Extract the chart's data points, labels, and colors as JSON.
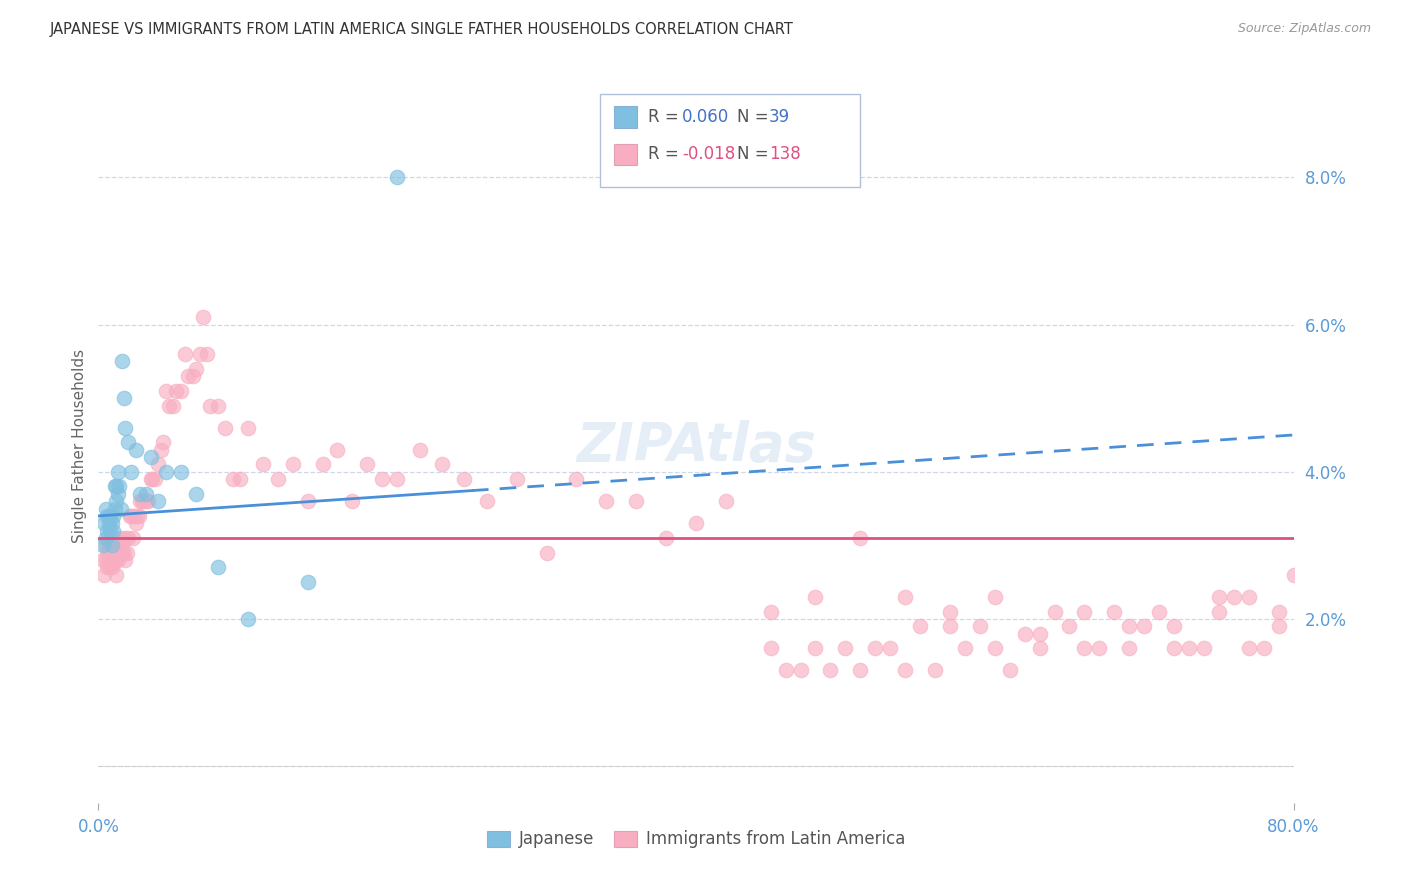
{
  "title": "JAPANESE VS IMMIGRANTS FROM LATIN AMERICA SINGLE FATHER HOUSEHOLDS CORRELATION CHART",
  "source": "Source: ZipAtlas.com",
  "ylabel": "Single Father Households",
  "xlim": [
    0.0,
    0.8
  ],
  "ylim": [
    -0.005,
    0.092
  ],
  "xticks": [
    0.0,
    0.8
  ],
  "xticklabels": [
    "0.0%",
    "80.0%"
  ],
  "right_ytick_positions": [
    0.02,
    0.04,
    0.06,
    0.08
  ],
  "right_ytick_labels": [
    "2.0%",
    "4.0%",
    "6.0%",
    "8.0%"
  ],
  "color_japanese": "#7fbfdf",
  "color_latin": "#f8aec0",
  "color_line_japanese": "#4a90d9",
  "color_line_latin": "#e05080",
  "background_color": "#ffffff",
  "grid_color": "#d0d8e8",
  "watermark": "ZIPAtlas",
  "japanese_x": [
    0.003,
    0.004,
    0.005,
    0.005,
    0.006,
    0.006,
    0.007,
    0.007,
    0.008,
    0.008,
    0.009,
    0.009,
    0.01,
    0.01,
    0.011,
    0.011,
    0.012,
    0.012,
    0.013,
    0.013,
    0.014,
    0.015,
    0.016,
    0.017,
    0.018,
    0.02,
    0.022,
    0.025,
    0.028,
    0.032,
    0.035,
    0.04,
    0.045,
    0.055,
    0.065,
    0.08,
    0.1,
    0.14,
    0.2
  ],
  "japanese_y": [
    0.03,
    0.033,
    0.031,
    0.035,
    0.032,
    0.034,
    0.033,
    0.034,
    0.032,
    0.034,
    0.033,
    0.03,
    0.032,
    0.034,
    0.035,
    0.038,
    0.036,
    0.038,
    0.04,
    0.037,
    0.038,
    0.035,
    0.055,
    0.05,
    0.046,
    0.044,
    0.04,
    0.043,
    0.037,
    0.037,
    0.042,
    0.036,
    0.04,
    0.04,
    0.037,
    0.027,
    0.02,
    0.025,
    0.08
  ],
  "latin_x": [
    0.003,
    0.004,
    0.005,
    0.005,
    0.006,
    0.006,
    0.007,
    0.007,
    0.008,
    0.008,
    0.009,
    0.009,
    0.01,
    0.01,
    0.01,
    0.011,
    0.011,
    0.012,
    0.012,
    0.013,
    0.013,
    0.014,
    0.015,
    0.015,
    0.016,
    0.016,
    0.017,
    0.018,
    0.018,
    0.019,
    0.02,
    0.021,
    0.022,
    0.023,
    0.024,
    0.025,
    0.026,
    0.027,
    0.028,
    0.029,
    0.03,
    0.032,
    0.033,
    0.035,
    0.036,
    0.038,
    0.04,
    0.042,
    0.043,
    0.045,
    0.047,
    0.05,
    0.052,
    0.055,
    0.058,
    0.06,
    0.063,
    0.065,
    0.068,
    0.07,
    0.073,
    0.075,
    0.08,
    0.085,
    0.09,
    0.095,
    0.1,
    0.11,
    0.12,
    0.13,
    0.14,
    0.15,
    0.16,
    0.17,
    0.18,
    0.19,
    0.2,
    0.215,
    0.23,
    0.245,
    0.26,
    0.28,
    0.3,
    0.32,
    0.34,
    0.36,
    0.38,
    0.4,
    0.42,
    0.45,
    0.48,
    0.51,
    0.54,
    0.57,
    0.6,
    0.63,
    0.66,
    0.69,
    0.72,
    0.75,
    0.77,
    0.79,
    0.8,
    0.79,
    0.78,
    0.77,
    0.76,
    0.75,
    0.74,
    0.73,
    0.72,
    0.71,
    0.7,
    0.69,
    0.68,
    0.67,
    0.66,
    0.65,
    0.64,
    0.63,
    0.62,
    0.61,
    0.6,
    0.59,
    0.58,
    0.57,
    0.56,
    0.55,
    0.54,
    0.53,
    0.52,
    0.51,
    0.5,
    0.49,
    0.48,
    0.47,
    0.46,
    0.45
  ],
  "latin_y": [
    0.028,
    0.026,
    0.028,
    0.03,
    0.027,
    0.029,
    0.028,
    0.03,
    0.027,
    0.029,
    0.027,
    0.028,
    0.028,
    0.03,
    0.031,
    0.028,
    0.029,
    0.026,
    0.028,
    0.028,
    0.029,
    0.029,
    0.029,
    0.031,
    0.03,
    0.029,
    0.029,
    0.028,
    0.031,
    0.029,
    0.031,
    0.034,
    0.034,
    0.031,
    0.034,
    0.033,
    0.034,
    0.034,
    0.036,
    0.036,
    0.036,
    0.036,
    0.036,
    0.039,
    0.039,
    0.039,
    0.041,
    0.043,
    0.044,
    0.051,
    0.049,
    0.049,
    0.051,
    0.051,
    0.056,
    0.053,
    0.053,
    0.054,
    0.056,
    0.061,
    0.056,
    0.049,
    0.049,
    0.046,
    0.039,
    0.039,
    0.046,
    0.041,
    0.039,
    0.041,
    0.036,
    0.041,
    0.043,
    0.036,
    0.041,
    0.039,
    0.039,
    0.043,
    0.041,
    0.039,
    0.036,
    0.039,
    0.029,
    0.039,
    0.036,
    0.036,
    0.031,
    0.033,
    0.036,
    0.021,
    0.023,
    0.031,
    0.023,
    0.021,
    0.023,
    0.018,
    0.021,
    0.019,
    0.019,
    0.023,
    0.016,
    0.021,
    0.026,
    0.019,
    0.016,
    0.023,
    0.023,
    0.021,
    0.016,
    0.016,
    0.016,
    0.021,
    0.019,
    0.016,
    0.021,
    0.016,
    0.016,
    0.019,
    0.021,
    0.016,
    0.018,
    0.013,
    0.016,
    0.019,
    0.016,
    0.019,
    0.013,
    0.019,
    0.013,
    0.016,
    0.016,
    0.013,
    0.016,
    0.013,
    0.016,
    0.013,
    0.013,
    0.016
  ]
}
